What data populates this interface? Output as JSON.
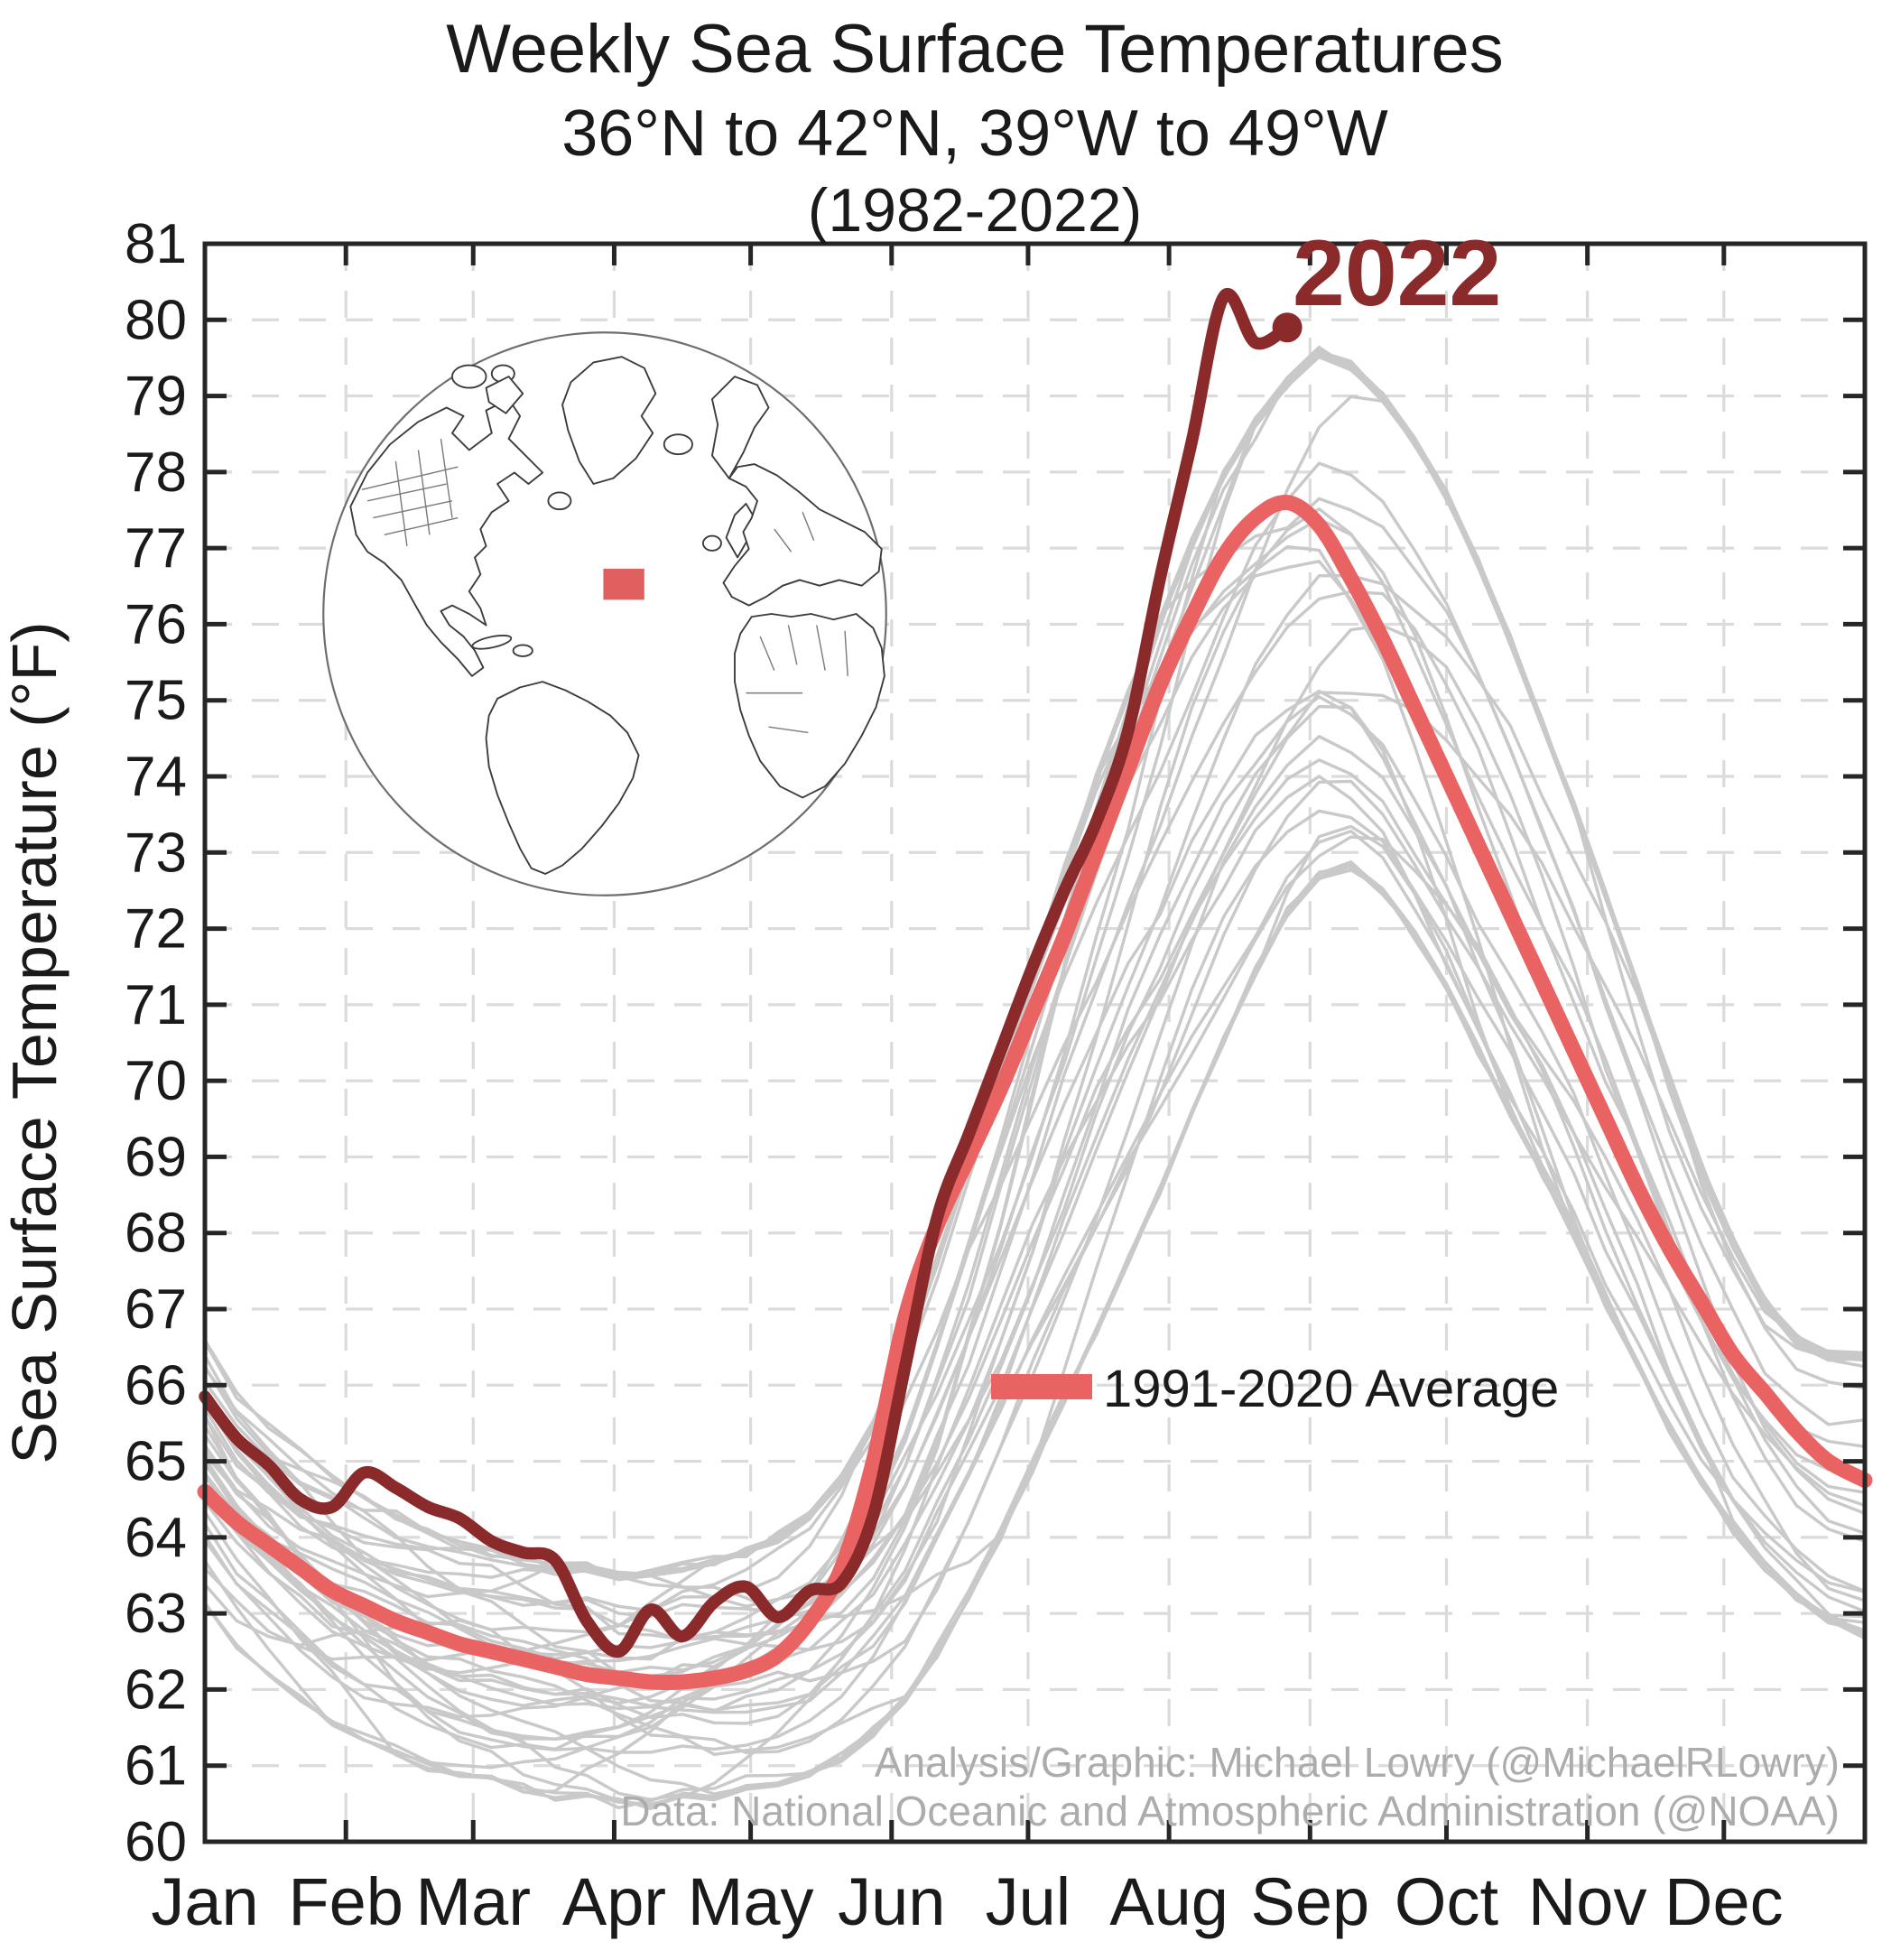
{
  "title": {
    "line1": "Weekly Sea Surface Temperatures",
    "line2": "36°N to 42°N, 39°W to 49°W",
    "line3": "(1982-2022)"
  },
  "y_axis": {
    "label": "Sea Surface Temperature (°F)",
    "min": 60,
    "max": 81,
    "tick_step": 1
  },
  "x_axis": {
    "months": [
      "Jan",
      "Feb",
      "Mar",
      "Apr",
      "May",
      "Jun",
      "Jul",
      "Aug",
      "Sep",
      "Oct",
      "Nov",
      "Dec"
    ]
  },
  "legend": {
    "average_label": "1991-2020 Average"
  },
  "annotations": {
    "current_year_label": "2022"
  },
  "credits": {
    "line1": "Analysis/Graphic: Michael Lowry (@MichaelRLowry)",
    "line2": "Data: National Oceanic and Atmospheric Administration (@NOAA)"
  },
  "colors": {
    "line_2022": "#8B2A2A",
    "average": "#E96363",
    "gray_years": "#C9C9C9",
    "grid": "#DBDBDB",
    "axis": "#262626",
    "text": "#1A1A1A",
    "credits_text": "#ACACAC",
    "globe_marker": "#E05F5F",
    "background": "#FFFFFF"
  },
  "inset_globe": {
    "depicts": "Orthographic globe of the North Atlantic hemisphere with country and state outlines",
    "marker": "red square over study region 36N-42N, 39W-49W",
    "marker_color": "#E05F5F"
  },
  "chart_data": {
    "type": "line",
    "title": "Weekly Sea Surface Temperatures 36°N to 42°N, 39°W to 49°W (1982-2022)",
    "xlabel": "",
    "ylabel": "Sea Surface Temperature (°F)",
    "ylim": [
      60,
      81
    ],
    "x_unit": "week of year (0 = Jan 1, weekly spacing)",
    "grid": true,
    "legend_position": "inside center-right",
    "series": [
      {
        "name": "2022",
        "color": "#8B2A2A",
        "line_width": 13.5,
        "end_marker": true,
        "weekly_values": [
          65.85,
          65.3,
          64.95,
          64.5,
          64.4,
          64.85,
          64.65,
          64.4,
          64.25,
          63.95,
          63.8,
          63.7,
          62.9,
          62.5,
          63.05,
          62.7,
          63.15,
          63.35,
          62.95,
          63.3,
          63.4,
          64.3,
          66.25,
          68.2,
          69.3,
          70.4,
          71.5,
          72.5,
          73.4,
          74.6,
          76.6,
          78.4,
          80.3,
          79.7,
          79.9
        ]
      },
      {
        "name": "1991-2020 Average",
        "color": "#E96363",
        "line_width": 17,
        "end_marker": false,
        "weekly_values": [
          64.6,
          64.2,
          63.9,
          63.6,
          63.3,
          63.1,
          62.9,
          62.75,
          62.6,
          62.5,
          62.4,
          62.3,
          62.2,
          62.15,
          62.1,
          62.1,
          62.15,
          62.25,
          62.45,
          62.9,
          63.6,
          65.0,
          66.9,
          68.1,
          69.0,
          69.9,
          70.9,
          71.9,
          73.0,
          74.1,
          75.2,
          76.1,
          76.9,
          77.4,
          77.6,
          77.3,
          76.6,
          75.8,
          74.9,
          74.0,
          73.1,
          72.2,
          71.3,
          70.4,
          69.5,
          68.6,
          67.8,
          67.1,
          66.4,
          65.9,
          65.4,
          65.0,
          64.75
        ]
      }
    ],
    "background_years": {
      "name": "Individual years 1982-2021",
      "color": "#C9C9C9",
      "count": 40,
      "rendering": "procedural lines bounded by weekly envelope",
      "weekly_min": [
        63.0,
        62.5,
        62.1,
        61.8,
        61.5,
        61.3,
        61.1,
        60.9,
        60.8,
        60.7,
        60.6,
        60.5,
        60.5,
        60.4,
        60.4,
        60.5,
        60.5,
        60.6,
        60.7,
        60.8,
        61.0,
        61.3,
        61.7,
        62.3,
        63.0,
        63.8,
        64.7,
        65.6,
        66.5,
        67.4,
        68.3,
        69.3,
        70.3,
        71.2,
        72.0,
        72.5,
        72.6,
        72.3,
        71.7,
        71.0,
        70.2,
        69.4,
        68.6,
        67.8,
        66.9,
        66.1,
        65.3,
        64.6,
        64.0,
        63.5,
        63.1,
        62.8,
        62.6
      ],
      "weekly_max": [
        66.7,
        66.0,
        65.6,
        65.2,
        64.9,
        64.6,
        64.4,
        64.2,
        64.0,
        63.9,
        63.8,
        63.7,
        63.7,
        63.6,
        63.6,
        63.7,
        63.8,
        63.9,
        64.1,
        64.4,
        64.9,
        65.6,
        66.6,
        67.8,
        69.1,
        70.4,
        71.7,
        73.0,
        74.2,
        75.3,
        76.3,
        77.3,
        78.2,
        78.9,
        79.4,
        79.8,
        79.6,
        79.2,
        78.6,
        77.9,
        77.0,
        76.0,
        74.9,
        73.8,
        72.6,
        71.4,
        70.2,
        69.0,
        68.0,
        67.2,
        66.7,
        66.5,
        66.5
      ]
    }
  }
}
